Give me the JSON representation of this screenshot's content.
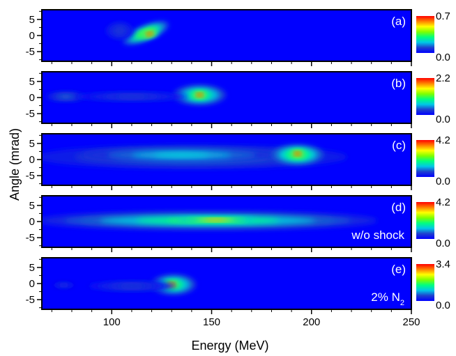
{
  "chart_data": {
    "type": "heatmap",
    "xlabel": "Energy (MeV)",
    "ylabel": "Angle (mrad)",
    "xlim": [
      65,
      250
    ],
    "ylim": [
      -8,
      8
    ],
    "x_ticks": [
      "100",
      "150",
      "200",
      "250"
    ],
    "y_ticks": [
      "5",
      "0",
      "-5"
    ],
    "colormap": [
      "#0000ff",
      "#1f3fcf",
      "#00c8e6",
      "#00ff7f",
      "#7fff00",
      "#ffff00",
      "#ff7f00",
      "#ff0000"
    ],
    "panels": [
      {
        "label": "(a)",
        "annotation": "",
        "colorbar": {
          "min": "0.0",
          "max": "0.7"
        },
        "blobs": [
          {
            "cx": 117,
            "cy": 0.8,
            "rx": 12,
            "ry": 2.2,
            "rot": -22,
            "v": 0.55
          },
          {
            "cx": 119,
            "cy": 0.5,
            "rx": 4,
            "ry": 1.0,
            "rot": -15,
            "v": 0.98
          },
          {
            "cx": 104,
            "cy": 1.5,
            "rx": 7,
            "ry": 2.8,
            "rot": 0,
            "v": 0.12
          }
        ]
      },
      {
        "label": "(b)",
        "annotation": "",
        "colorbar": {
          "min": "0.0",
          "max": "2.2"
        },
        "blobs": [
          {
            "cx": 144,
            "cy": 0.8,
            "rx": 13,
            "ry": 3.0,
            "rot": 0,
            "v": 0.45
          },
          {
            "cx": 144,
            "cy": 0.8,
            "rx": 4,
            "ry": 1.0,
            "rot": 0,
            "v": 0.98
          },
          {
            "cx": 77,
            "cy": 0.3,
            "rx": 10,
            "ry": 1.4,
            "rot": 0,
            "v": 0.18
          },
          {
            "cx": 110,
            "cy": 0.3,
            "rx": 28,
            "ry": 1.4,
            "rot": 0,
            "v": 0.12
          }
        ]
      },
      {
        "label": "(c)",
        "annotation": "",
        "colorbar": {
          "min": "0.0",
          "max": "4.2"
        },
        "blobs": [
          {
            "cx": 140,
            "cy": 0.8,
            "rx": 78,
            "ry": 3.8,
            "rot": 0,
            "v": 0.2
          },
          {
            "cx": 135,
            "cy": 1.4,
            "rx": 50,
            "ry": 2.2,
            "rot": 0,
            "v": 0.3
          },
          {
            "cx": 193,
            "cy": 1.5,
            "rx": 13,
            "ry": 3.0,
            "rot": 0,
            "v": 0.5
          },
          {
            "cx": 193,
            "cy": 1.8,
            "rx": 4,
            "ry": 1.1,
            "rot": 0,
            "v": 0.98
          }
        ]
      },
      {
        "label": "(d)",
        "annotation": "w/o shock",
        "colorbar": {
          "min": "0.0",
          "max": "4.2"
        },
        "blobs": [
          {
            "cx": 148,
            "cy": 0.3,
            "rx": 85,
            "ry": 3.0,
            "rot": 0,
            "v": 0.25
          },
          {
            "cx": 148,
            "cy": 0.3,
            "rx": 72,
            "ry": 1.6,
            "rot": 0,
            "v": 0.5
          },
          {
            "cx": 152,
            "cy": 0.5,
            "rx": 20,
            "ry": 0.7,
            "rot": 0,
            "v": 0.8
          }
        ]
      },
      {
        "label": "(e)",
        "annotation": "2% N",
        "annotation_subscript": "2",
        "colorbar": {
          "min": "0.0",
          "max": "3.4"
        },
        "blobs": [
          {
            "cx": 131,
            "cy": -0.3,
            "rx": 11,
            "ry": 3.0,
            "rot": 0,
            "v": 0.45
          },
          {
            "cx": 130,
            "cy": -0.3,
            "rx": 4,
            "ry": 1.0,
            "rot": 0,
            "v": 0.98
          },
          {
            "cx": 110,
            "cy": -0.8,
            "rx": 22,
            "ry": 1.6,
            "rot": 0,
            "v": 0.12
          },
          {
            "cx": 76,
            "cy": -0.5,
            "rx": 6,
            "ry": 1.0,
            "rot": 0,
            "v": 0.1
          }
        ]
      }
    ]
  }
}
